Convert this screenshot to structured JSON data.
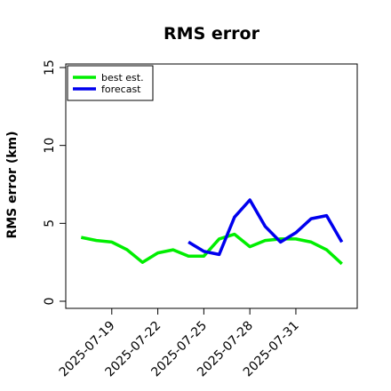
{
  "chart_data": {
    "type": "line",
    "title": "RMS error",
    "ylabel": "RMS error (km)",
    "xlabel": "",
    "ylim": [
      0,
      15
    ],
    "yticks": [
      0,
      5,
      10,
      15
    ],
    "xlim": [
      "2025-07-16",
      "2025-08-04"
    ],
    "xticks": [
      "2025-07-19",
      "2025-07-22",
      "2025-07-25",
      "2025-07-28",
      "2025-07-31"
    ],
    "legend_position": "top-left",
    "grid": false,
    "series": [
      {
        "name": "best est.",
        "color": "#00ee00",
        "x": [
          "2025-07-17",
          "2025-07-18",
          "2025-07-19",
          "2025-07-20",
          "2025-07-21",
          "2025-07-22",
          "2025-07-23",
          "2025-07-24",
          "2025-07-25",
          "2025-07-26",
          "2025-07-27",
          "2025-07-28",
          "2025-07-29",
          "2025-07-30",
          "2025-07-31",
          "2025-08-01",
          "2025-08-02",
          "2025-08-03"
        ],
        "values": [
          4.1,
          3.9,
          3.8,
          3.3,
          2.5,
          3.1,
          3.3,
          2.9,
          2.9,
          4.0,
          4.3,
          3.5,
          3.9,
          4.0,
          4.0,
          3.8,
          3.3,
          2.4
        ]
      },
      {
        "name": "forecast",
        "color": "#0000ee",
        "x": [
          "2025-07-24",
          "2025-07-25",
          "2025-07-26",
          "2025-07-27",
          "2025-07-28",
          "2025-07-29",
          "2025-07-30",
          "2025-07-31",
          "2025-08-01",
          "2025-08-02",
          "2025-08-03"
        ],
        "values": [
          3.8,
          3.2,
          3.0,
          5.4,
          6.5,
          4.8,
          3.8,
          4.4,
          5.3,
          5.5,
          3.8
        ]
      }
    ]
  }
}
